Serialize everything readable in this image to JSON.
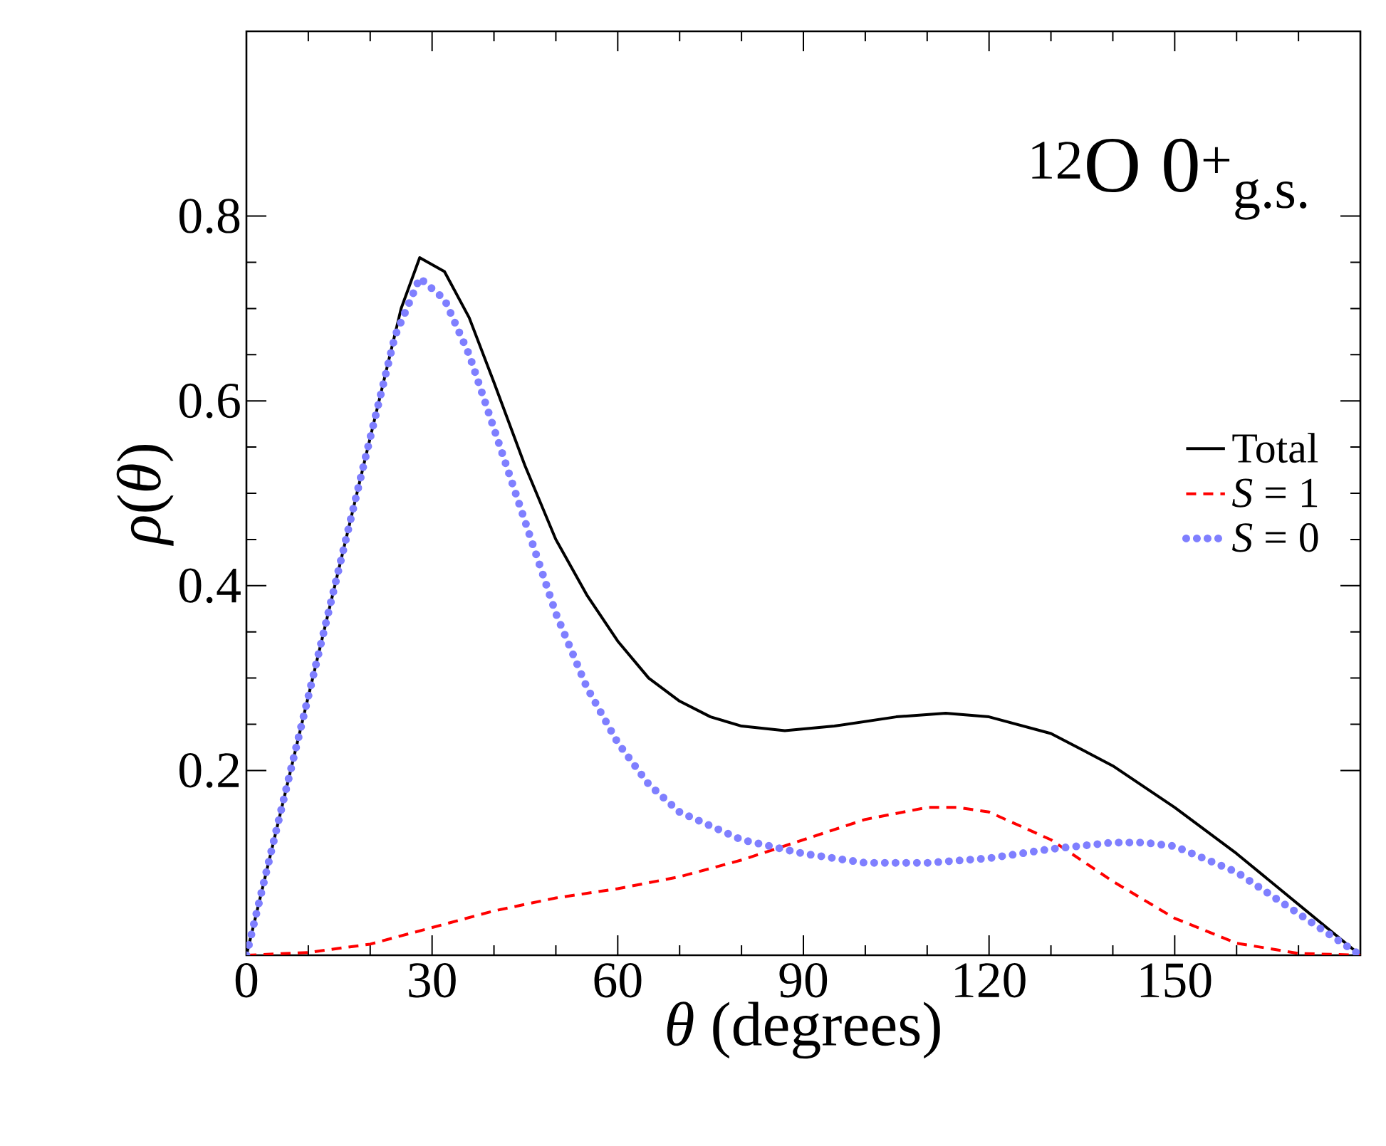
{
  "chart_data": {
    "type": "line",
    "xlabel": "*θ* (degrees)",
    "ylabel": "*ρ*(*θ*)",
    "annotations": [
      "$^{12}$O 0$^{+}$$_{g.s.}$"
    ],
    "xlim": [
      0,
      180
    ],
    "ylim": [
      0,
      1
    ],
    "xticks": [
      0,
      30,
      60,
      90,
      120,
      150,
      {
        "value": 180,
        "label": null
      }
    ],
    "yticks": [
      0.2,
      0.4,
      0.6,
      0.8
    ],
    "legend": "right",
    "marker": "none",
    "series": [
      {
        "name": "Total",
        "color": "#000000",
        "line_style": "solid",
        "x": [
          0,
          5,
          10,
          15,
          20,
          25,
          28,
          32,
          36,
          40,
          45,
          50,
          55,
          60,
          65,
          70,
          75,
          80,
          87,
          95,
          105,
          113,
          120,
          130,
          140,
          150,
          160,
          170,
          180
        ],
        "values": [
          0,
          0.14,
          0.28,
          0.42,
          0.56,
          0.7,
          0.755,
          0.74,
          0.69,
          0.62,
          0.53,
          0.45,
          0.39,
          0.34,
          0.3,
          0.275,
          0.258,
          0.248,
          0.243,
          0.248,
          0.258,
          0.262,
          0.258,
          0.24,
          0.205,
          0.16,
          0.11,
          0.055,
          0
        ]
      },
      {
        "name": "*S* = 1",
        "color": "#ff0000",
        "line_style": "dashed",
        "x": [
          0,
          10,
          20,
          30,
          40,
          50,
          60,
          70,
          80,
          90,
          100,
          110,
          115,
          120,
          130,
          140,
          150,
          160,
          170,
          180
        ],
        "values": [
          0,
          0.003,
          0.012,
          0.03,
          0.048,
          0.062,
          0.072,
          0.085,
          0.103,
          0.125,
          0.147,
          0.16,
          0.16,
          0.155,
          0.125,
          0.08,
          0.04,
          0.013,
          0.002,
          0
        ]
      },
      {
        "name": "*S* = 0",
        "color": "#7f7fff",
        "line_style": "dotted",
        "x": [
          0,
          5,
          10,
          15,
          20,
          24,
          28,
          32,
          36,
          40,
          45,
          50,
          55,
          60,
          65,
          70,
          80,
          90,
          100,
          110,
          120,
          130,
          140,
          145,
          150,
          160,
          170,
          180
        ],
        "values": [
          0,
          0.14,
          0.28,
          0.42,
          0.56,
          0.67,
          0.733,
          0.71,
          0.65,
          0.57,
          0.47,
          0.37,
          0.29,
          0.23,
          0.185,
          0.155,
          0.125,
          0.11,
          0.1,
          0.1,
          0.105,
          0.115,
          0.122,
          0.122,
          0.118,
          0.09,
          0.045,
          0
        ]
      }
    ]
  }
}
